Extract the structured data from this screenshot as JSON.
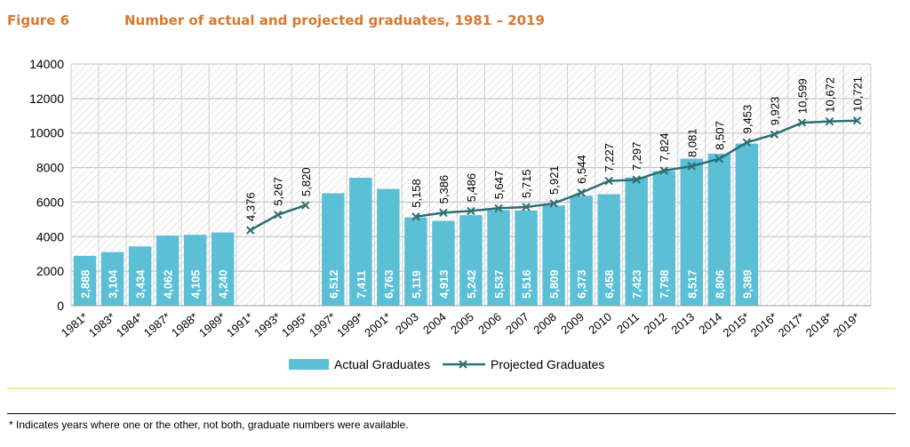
{
  "header": {
    "figure_label": "Figure 6",
    "title": "Number of actual and projected graduates, 1981 – 2019"
  },
  "footnote": "* Indicates years where one or the other, not both, graduate numbers were available.",
  "colors": {
    "accent": "#d9782d",
    "bar": "#5bbfd6",
    "line": "#2f6e73",
    "highlight_line": "#f2ee9b"
  },
  "chart_data": {
    "type": "bar",
    "categories": [
      "1981*",
      "1983*",
      "1984*",
      "1987*",
      "1988*",
      "1989*",
      "1991*",
      "1993*",
      "1995*",
      "1997*",
      "1999*",
      "2001*",
      "2003",
      "2004",
      "2005",
      "2006",
      "2007",
      "2008",
      "2009",
      "2010",
      "2011",
      "2012",
      "2013",
      "2014",
      "2015*",
      "2016*",
      "2017*",
      "2018*",
      "2019*"
    ],
    "series": [
      {
        "name": "Actual Graduates",
        "kind": "bar",
        "values": [
          2888,
          3104,
          3434,
          4062,
          4105,
          4240,
          null,
          null,
          null,
          6512,
          7411,
          6763,
          5119,
          4913,
          5242,
          5537,
          5516,
          5809,
          6373,
          6458,
          7423,
          7798,
          8517,
          8806,
          9389,
          null,
          null,
          null,
          null
        ],
        "labels": [
          "2,888",
          "3,104",
          "3,434",
          "4,062",
          "4,105",
          "4,240",
          null,
          null,
          null,
          "6,512",
          "7,411",
          "6,763",
          "5,119",
          "4,913",
          "5,242",
          "5,537",
          "5,516",
          "5,809",
          "6,373",
          "6,458",
          "7,423",
          "7,798",
          "8,517",
          "8,806",
          "9,389",
          null,
          null,
          null,
          null
        ]
      },
      {
        "name": "Projected Graduates",
        "kind": "line",
        "values": [
          null,
          null,
          null,
          null,
          null,
          null,
          4376,
          5267,
          5820,
          null,
          null,
          null,
          5158,
          5386,
          5486,
          5647,
          5715,
          5921,
          6544,
          7227,
          7297,
          7824,
          8081,
          8507,
          9453,
          9923,
          10599,
          10672,
          10721
        ],
        "labels": [
          null,
          null,
          null,
          null,
          null,
          null,
          "4,376",
          "5,267",
          "5,820",
          null,
          null,
          null,
          "5,158",
          "5,386",
          "5,486",
          "5,647",
          "5,715",
          "5,921",
          "6,544",
          "7,227",
          "7,297",
          "7,824",
          "8,081",
          "8,507",
          "9,453",
          "9,923",
          "10,599",
          "10,672",
          "10,721"
        ]
      }
    ],
    "yticks": [
      "0",
      "2000",
      "4000",
      "6000",
      "8000",
      "10000",
      "12000",
      "14000"
    ],
    "ylim": [
      0,
      14000
    ],
    "legend": [
      "Actual Graduates",
      "Projected Graduates"
    ],
    "legend_position": "bottom",
    "grid": true
  }
}
